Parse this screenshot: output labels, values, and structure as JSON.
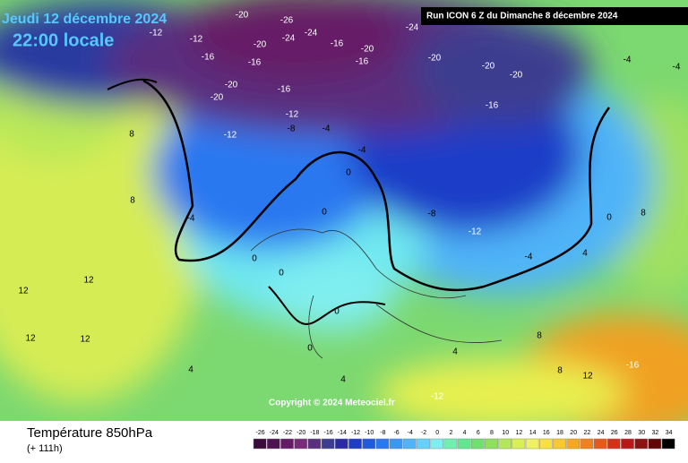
{
  "header": {
    "date": "Jeudi 12 décembre 2024",
    "time": "22:00 locale",
    "run": "Run ICON 6 Z du Dimanche 8 décembre 2024"
  },
  "map": {
    "copyright": "Copyright © 2024 Meteociel.fr",
    "contour_labels": [
      -20,
      -26,
      -24,
      -20,
      -24,
      -16,
      -20,
      -24,
      -20,
      -20,
      -20,
      -16,
      -16,
      -16,
      -20,
      -20,
      -16,
      -12,
      -12,
      -8,
      -4,
      -4,
      -12,
      -12,
      -16,
      8,
      8,
      -4,
      0,
      0,
      0,
      0,
      -8,
      -12,
      -4,
      4,
      8,
      12,
      12,
      12,
      4,
      0,
      0,
      4,
      8,
      8,
      12,
      -16,
      -12,
      4,
      0,
      -4,
      -4,
      12
    ]
  },
  "footer": {
    "title": "Température 850hPa",
    "subtitle": "(+ 111h)"
  },
  "colorbar": {
    "ticks": [
      -26,
      -24,
      -22,
      -20,
      -18,
      -16,
      -14,
      -12,
      -10,
      -8,
      -6,
      -4,
      -2,
      0,
      2,
      4,
      6,
      8,
      10,
      12,
      14,
      16,
      18,
      20,
      22,
      24,
      26,
      28,
      30,
      32,
      34
    ],
    "colors": [
      "#3a0a3a",
      "#4f1250",
      "#661a66",
      "#7a2a7a",
      "#5a2f7e",
      "#3c3c90",
      "#2a2aa8",
      "#1e3cc8",
      "#1f5ae0",
      "#2a78f0",
      "#3b96f5",
      "#4fb4f8",
      "#66d2fa",
      "#80eef0",
      "#70f0b0",
      "#60e890",
      "#70e070",
      "#90e060",
      "#b4e858",
      "#d8f050",
      "#f0f060",
      "#f8e040",
      "#f8c830",
      "#f8a820",
      "#f08020",
      "#e85818",
      "#d83018",
      "#b81818",
      "#901010",
      "#600808",
      "#000000"
    ]
  }
}
